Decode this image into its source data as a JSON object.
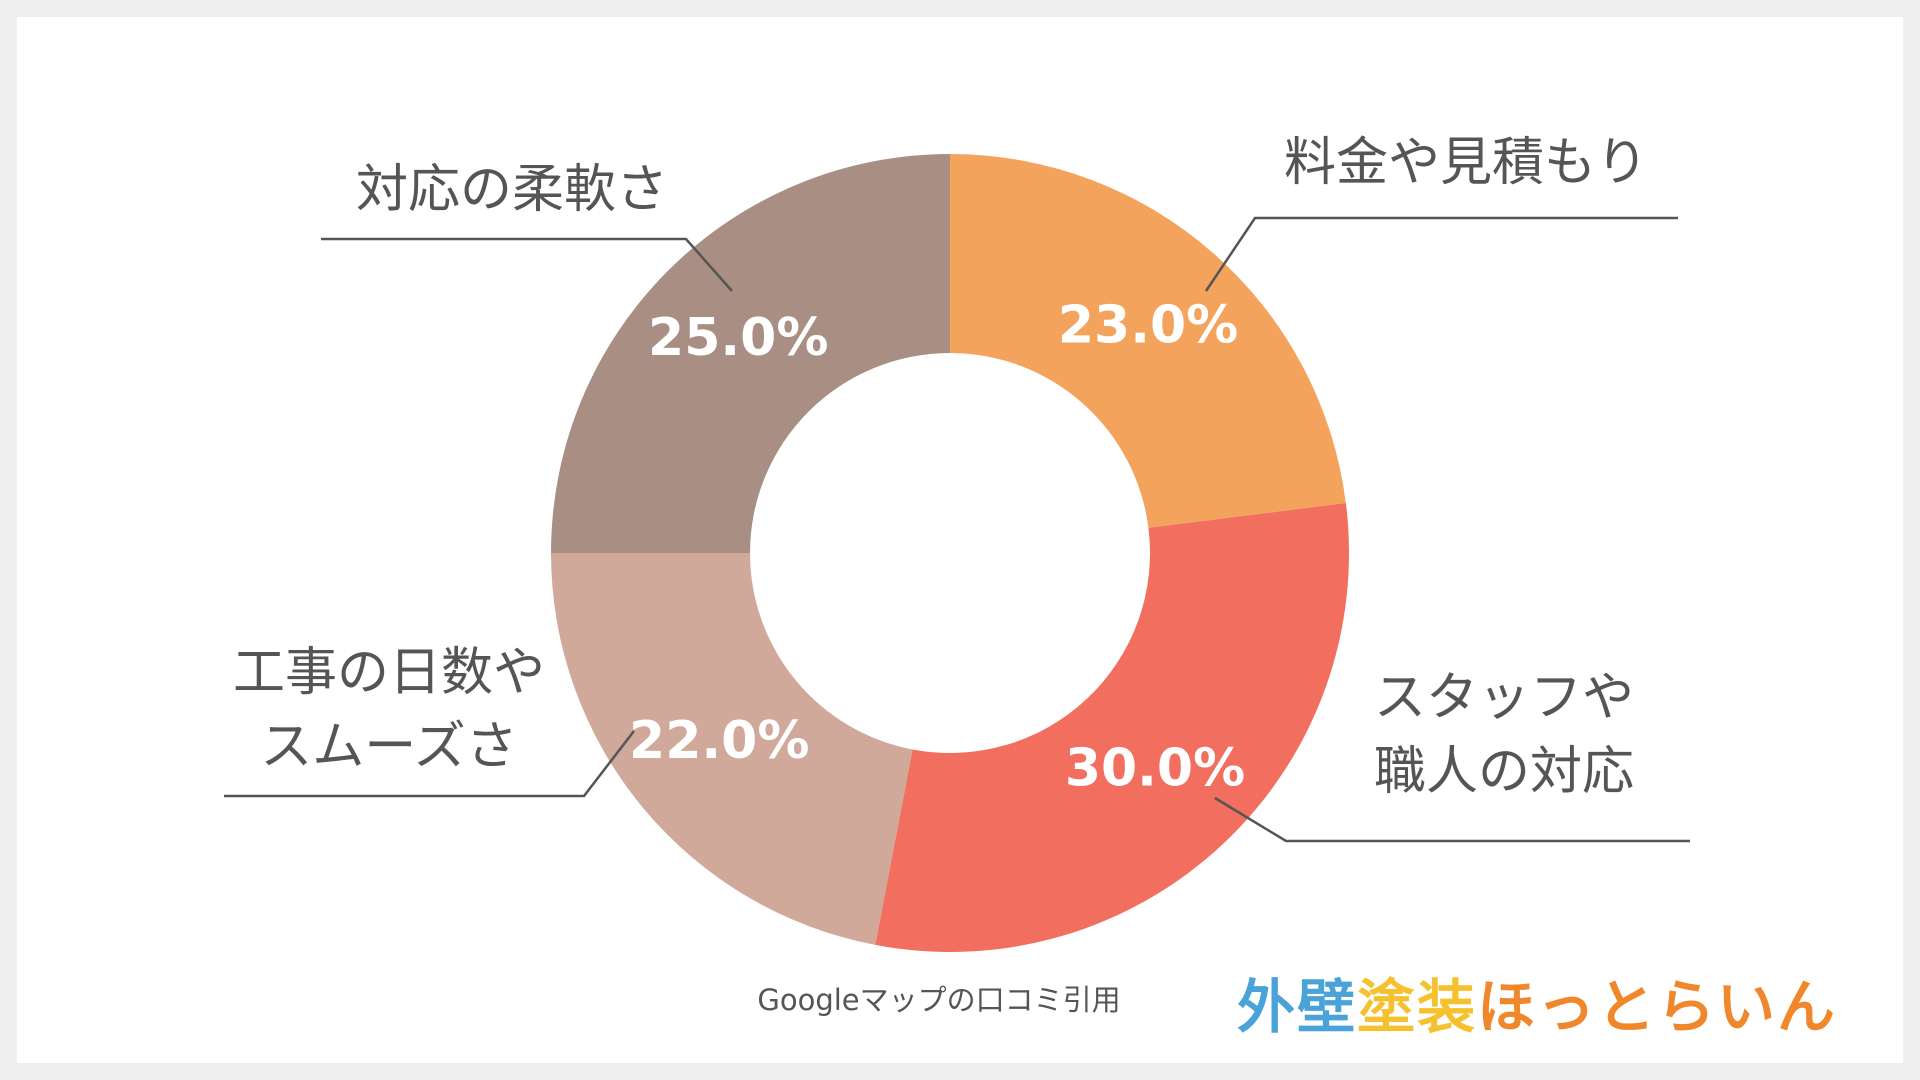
{
  "chart_data": {
    "type": "donut",
    "categories": [
      "料金や見積もり",
      "スタッフや\n職人の対応",
      "工事の日数や\nスムーズさ",
      "対応の柔軟さ"
    ],
    "values": [
      23,
      30,
      22,
      25
    ],
    "value_labels": [
      "23.0%",
      "30.0%",
      "22.0%",
      "25.0%"
    ],
    "colors": [
      "#f4a35c",
      "#f26e5e",
      "#d0a99b",
      "#a98e83"
    ]
  },
  "footer": {
    "source": "Googleマップの口コミ引用",
    "logo": [
      "外壁",
      "塗装",
      "ほっとらいん"
    ]
  }
}
